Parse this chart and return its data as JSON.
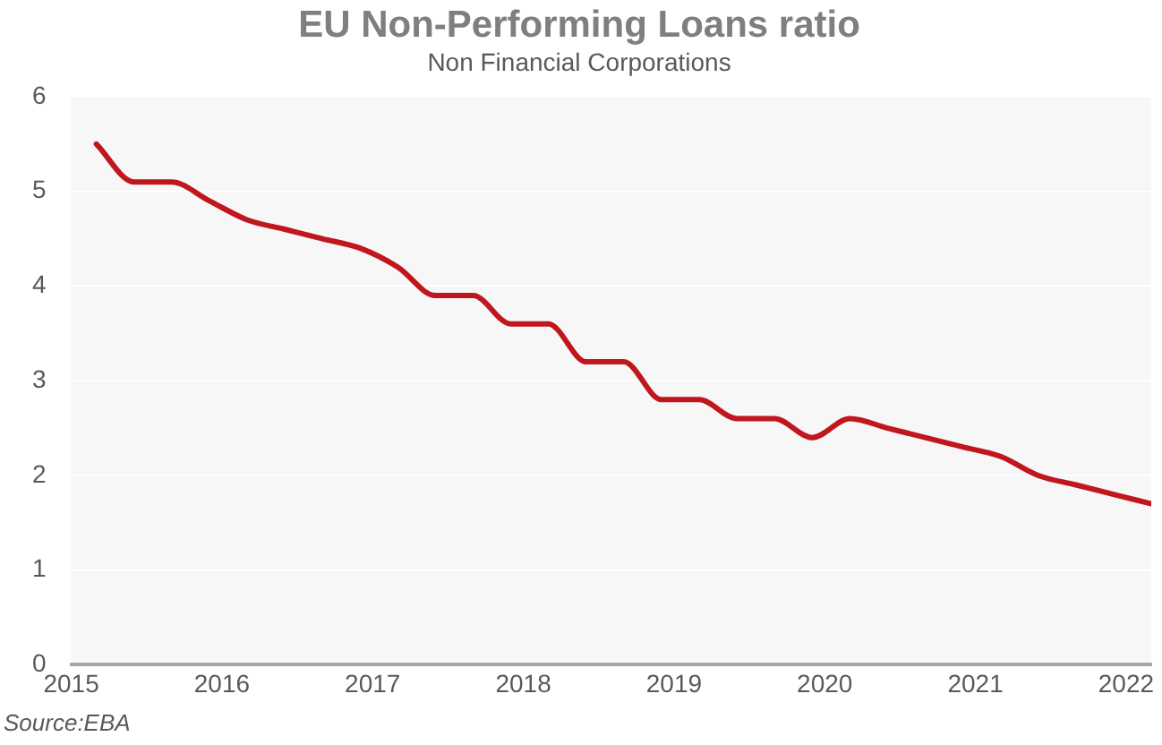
{
  "chart_data": {
    "type": "line",
    "title": "EU Non-Performing Loans ratio",
    "subtitle": "Non Financial Corporations",
    "x": [
      "2015-03",
      "2015-06",
      "2015-09",
      "2015-12",
      "2016-03",
      "2016-06",
      "2016-09",
      "2016-12",
      "2017-03",
      "2017-06",
      "2017-09",
      "2017-12",
      "2018-03",
      "2018-06",
      "2018-09",
      "2018-12",
      "2019-03",
      "2019-06",
      "2019-09",
      "2019-12",
      "2020-03",
      "2020-06",
      "2020-09",
      "2020-12",
      "2021-03",
      "2021-06",
      "2021-09",
      "2021-12",
      "2022-03"
    ],
    "series": [
      {
        "color": "#c0161d",
        "values": [
          5.5,
          5.1,
          5.1,
          4.9,
          4.7,
          4.6,
          4.5,
          4.4,
          4.2,
          3.9,
          3.9,
          3.6,
          3.6,
          3.2,
          3.2,
          2.8,
          2.8,
          2.6,
          2.6,
          2.4,
          2.6,
          2.5,
          2.4,
          2.3,
          2.2,
          2.0,
          1.9,
          1.8,
          1.7
        ]
      }
    ],
    "xlim": [
      "2015",
      "2022-03"
    ],
    "xticks": [
      "2015",
      "2016",
      "2017",
      "2018",
      "2019",
      "2020",
      "2021",
      "2022"
    ],
    "ylim": [
      0,
      6
    ],
    "yticks": [
      0,
      1,
      2,
      3,
      4,
      5,
      6
    ],
    "grid": "y",
    "legend": false,
    "marker": "none",
    "line_style": "solid",
    "annotations": [
      "Source:EBA"
    ]
  }
}
